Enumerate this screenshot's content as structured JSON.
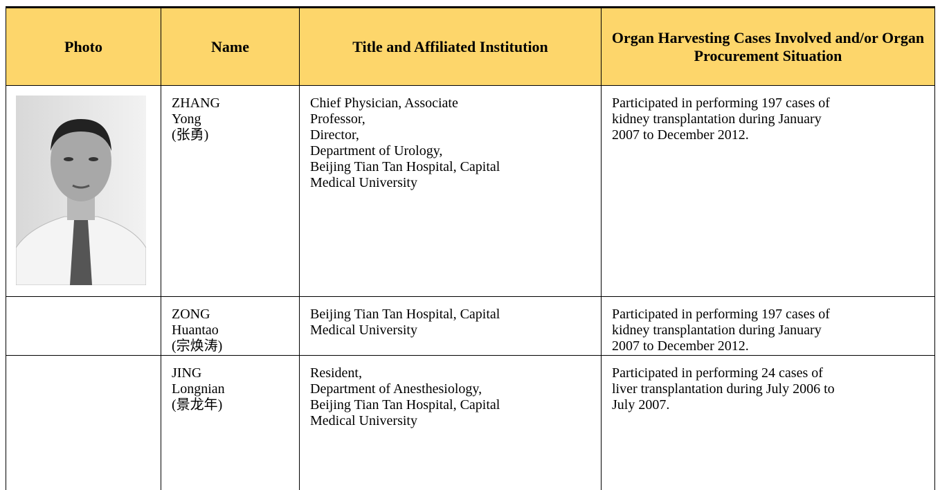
{
  "table": {
    "header": [
      "Photo",
      "Name",
      "Title and Affiliated Institution",
      "Organ Harvesting Cases Involved and/or Organ Procurement Situation"
    ],
    "rows": [
      {
        "name": [
          "ZHANG",
          "Yong",
          "(张勇)"
        ],
        "title": [
          "Chief Physician, Associate",
          "Professor,",
          "Director,",
          "Department of Urology,",
          "Beijing Tian Tan Hospital, Capital",
          "Medical University"
        ],
        "cases": [
          "Participated in performing 197 cases of",
          "kidney transplantation during January",
          "2007 to December 2012."
        ]
      },
      {
        "name": [
          "ZONG",
          "Huantao",
          "(宗焕涛)"
        ],
        "title": [
          "Beijing Tian Tan Hospital, Capital",
          "Medical University"
        ],
        "cases": [
          "Participated in performing 197 cases of",
          "kidney transplantation during January",
          "2007 to December 2012."
        ]
      },
      {
        "name": [
          "JING",
          "Longnian",
          "(景龙年)"
        ],
        "title": [
          "Resident,",
          "Department of Anesthesiology,",
          "Beijing Tian Tan Hospital, Capital",
          "Medical University"
        ],
        "cases": [
          "Participated in performing 24 cases of",
          "liver transplantation during July 2006 to",
          "July 2007."
        ]
      }
    ]
  }
}
